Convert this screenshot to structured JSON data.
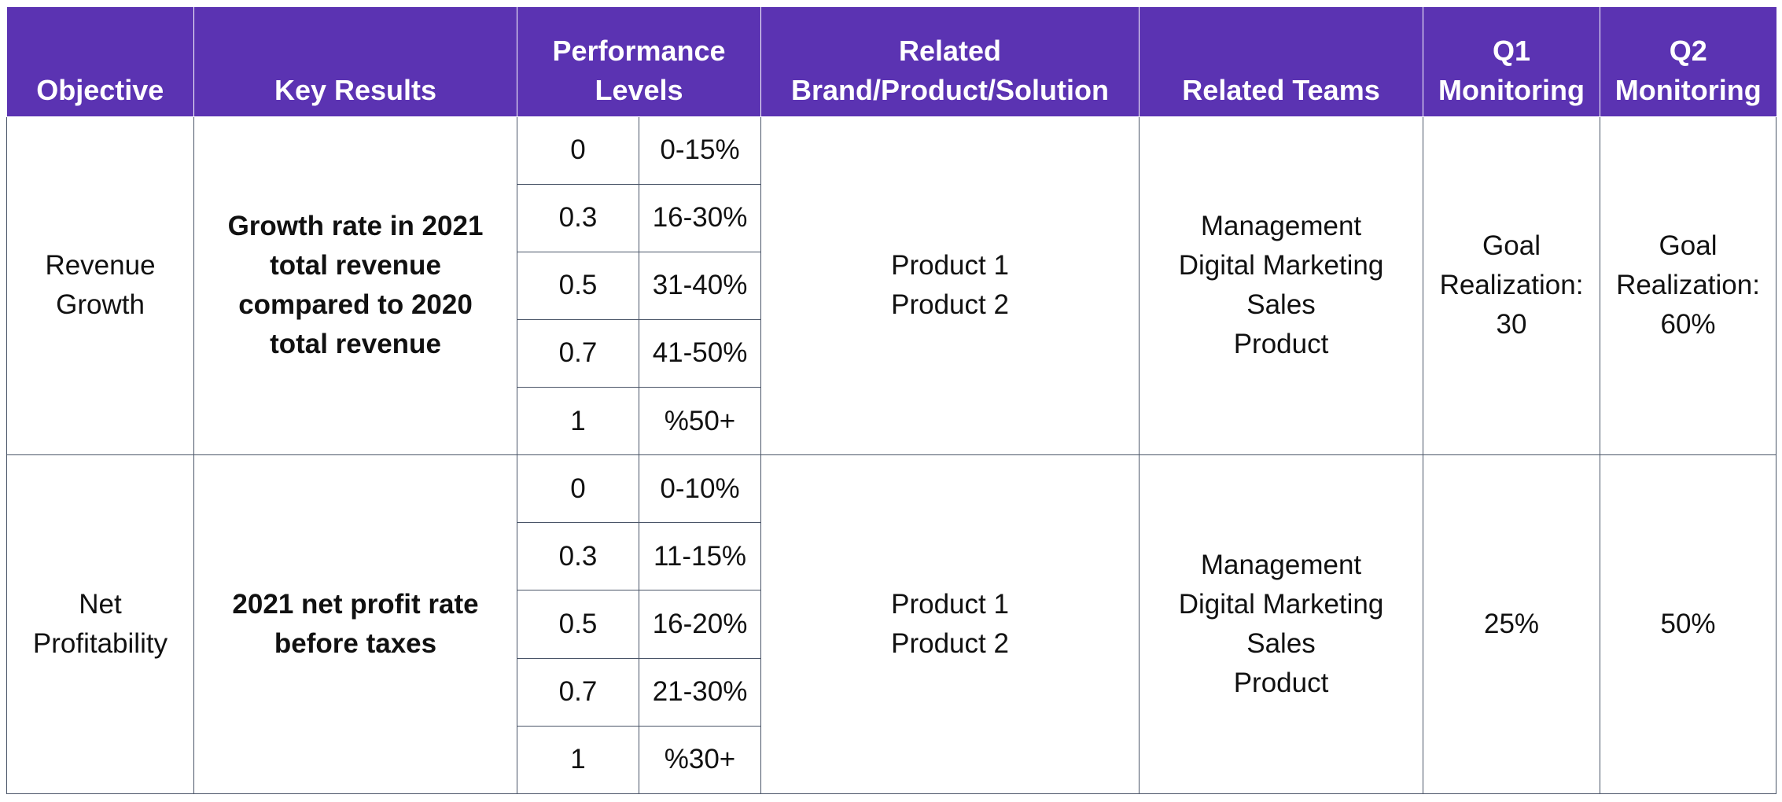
{
  "headers": {
    "objective": "Objective",
    "key_results": "Key Results",
    "performance_levels": [
      "Performance",
      "Levels"
    ],
    "related_brand": [
      "Related",
      "Brand/Product/Solution"
    ],
    "related_teams": "Related Teams",
    "q1": [
      "Q1",
      "Monitoring"
    ],
    "q2": [
      "Q2",
      "Monitoring"
    ]
  },
  "rows": [
    {
      "objective": [
        "Revenue",
        "Growth"
      ],
      "key_result": [
        "Growth rate in 2021",
        "total revenue",
        "compared to 2020",
        "total revenue"
      ],
      "levels": [
        {
          "score": "0",
          "range": "0-15%"
        },
        {
          "score": "0.3",
          "range": "16-30%"
        },
        {
          "score": "0.5",
          "range": "31-40%"
        },
        {
          "score": "0.7",
          "range": "41-50%"
        },
        {
          "score": "1",
          "range": "%50+"
        }
      ],
      "products": [
        "Product 1",
        "Product 2"
      ],
      "teams": [
        "Management",
        "Digital Marketing",
        "Sales",
        "Product"
      ],
      "q1": [
        "Goal",
        "Realization:",
        "30"
      ],
      "q2": [
        "Goal",
        "Realization:",
        "60%"
      ]
    },
    {
      "objective": [
        "Net",
        "Profitability"
      ],
      "key_result": [
        "2021 net profit rate",
        "before taxes"
      ],
      "levels": [
        {
          "score": "0",
          "range": "0-10%"
        },
        {
          "score": "0.3",
          "range": "11-15%"
        },
        {
          "score": "0.5",
          "range": "16-20%"
        },
        {
          "score": "0.7",
          "range": "21-30%"
        },
        {
          "score": "1",
          "range": "%30+"
        }
      ],
      "products": [
        "Product 1",
        "Product 2"
      ],
      "teams": [
        "Management",
        "Digital Marketing",
        "Sales",
        "Product"
      ],
      "q1": [
        "25%"
      ],
      "q2": [
        "50%"
      ]
    }
  ],
  "colors": {
    "header_bg": "#5b33b2",
    "header_text": "#ffffff",
    "border": "#4a5568"
  }
}
